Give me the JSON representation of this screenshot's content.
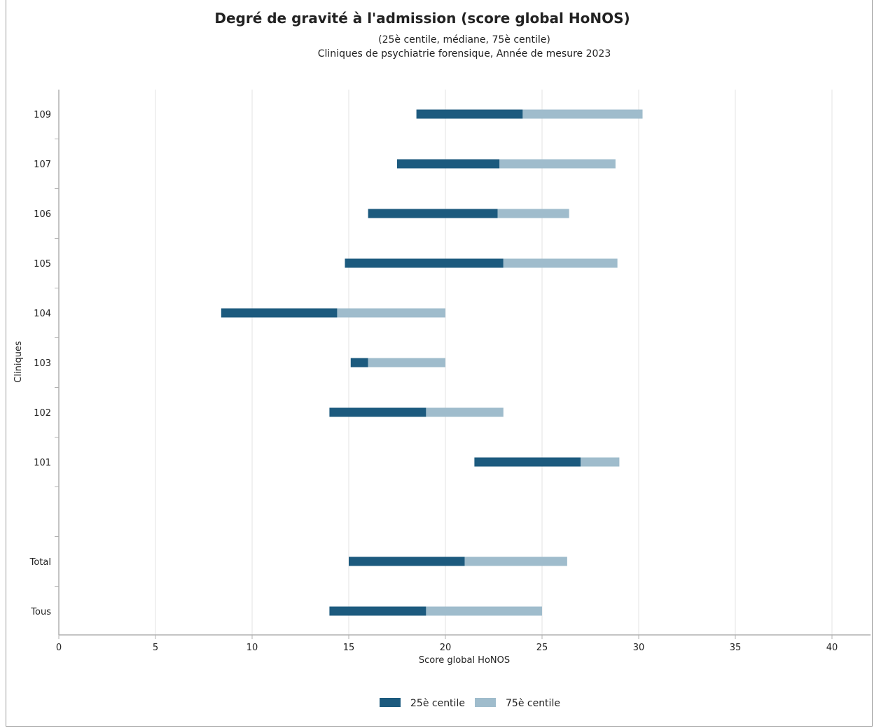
{
  "chart_data": {
    "type": "bar",
    "orientation": "horizontal",
    "stacked_range": true,
    "title": "Degré de gravité à l'admission (score global HoNOS)",
    "subtitle": [
      "(25è centile, médiane, 75è centile)",
      "Cliniques de psychiatrie forensique, Année de mesure 2023"
    ],
    "xlabel": "Score global HoNOS",
    "ylabel": "Cliniques",
    "xlim": [
      0,
      42
    ],
    "xticks": [
      0,
      5,
      10,
      15,
      20,
      25,
      30,
      35,
      40
    ],
    "grid": true,
    "legend_position": "bottom",
    "categories": [
      "109",
      "107",
      "106",
      "105",
      "104",
      "103",
      "102",
      "101",
      "",
      "Total",
      "Tous"
    ],
    "p25": [
      18.5,
      17.5,
      16.0,
      14.8,
      8.4,
      15.1,
      14.0,
      21.5,
      null,
      15.0,
      14.0
    ],
    "median": [
      24.0,
      22.8,
      22.7,
      23.0,
      14.4,
      16.0,
      19.0,
      27.0,
      null,
      21.0,
      19.0
    ],
    "p75": [
      30.2,
      28.8,
      26.4,
      28.9,
      20.0,
      20.0,
      23.0,
      29.0,
      null,
      26.3,
      25.0
    ],
    "series": [
      {
        "name": "25è centile",
        "color": "#1c5a7e"
      },
      {
        "name": "75è centile",
        "color": "#9fbccc"
      }
    ]
  }
}
